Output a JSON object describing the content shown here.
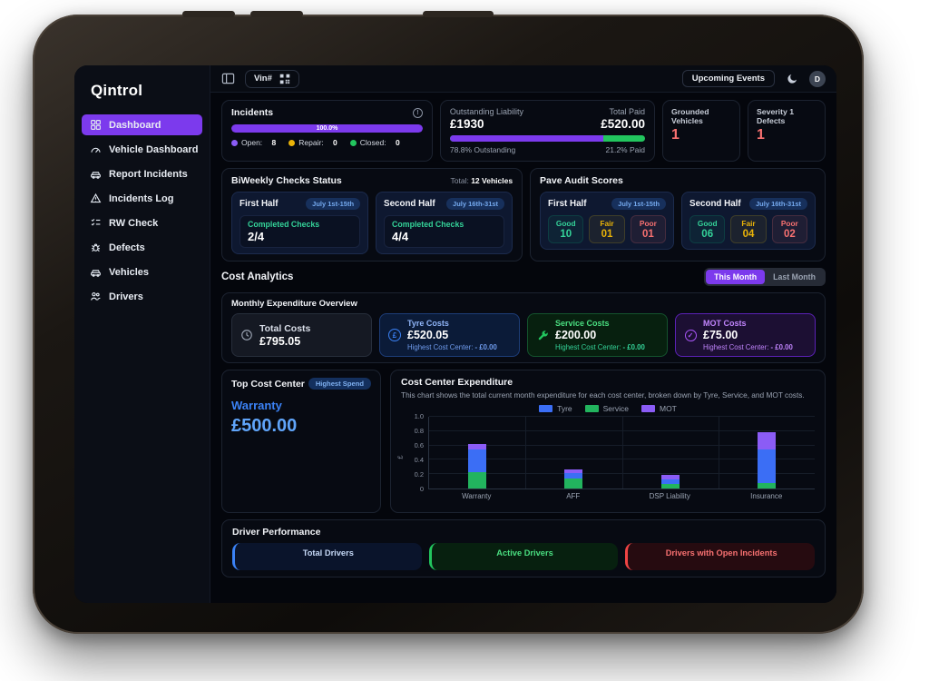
{
  "sidebar": {
    "logo": "Qintrol",
    "items": [
      {
        "label": "Dashboard",
        "icon": "grid-icon",
        "active": true
      },
      {
        "label": "Vehicle Dashboard",
        "icon": "gauge-icon"
      },
      {
        "label": "Report Incidents",
        "icon": "car-icon"
      },
      {
        "label": "Incidents Log",
        "icon": "warning-triangle-icon"
      },
      {
        "label": "RW Check",
        "icon": "checklist-icon"
      },
      {
        "label": "Defects",
        "icon": "bug-icon"
      },
      {
        "label": "Vehicles",
        "icon": "car-icon"
      },
      {
        "label": "Drivers",
        "icon": "people-icon"
      }
    ]
  },
  "topbar": {
    "vin_label": "Vin#",
    "upcoming_events": "Upcoming Events",
    "avatar_initial": "D"
  },
  "incidents": {
    "title": "Incidents",
    "progress_label": "100.0%",
    "progress_pct": 100,
    "legend": [
      {
        "label": "Open:",
        "value": "8",
        "color": "#8b5cf6"
      },
      {
        "label": "Repair:",
        "value": "0",
        "color": "#eab308"
      },
      {
        "label": "Closed:",
        "value": "0",
        "color": "#22c55e"
      }
    ]
  },
  "liability": {
    "left_label": "Outstanding Liability",
    "left_value": "£1930",
    "right_label": "Total Paid",
    "right_value": "£520.00",
    "outstanding_pct": 78.8,
    "paid_pct": 21.2,
    "left_sub": "78.8% Outstanding",
    "right_sub": "21.2% Paid",
    "outstanding_color": "#7c3aed",
    "paid_color": "#22c55e"
  },
  "stat_cards": [
    {
      "label": "Grounded Vehicles",
      "value": "1"
    },
    {
      "label": "Severity 1 Defects",
      "value": "1"
    }
  ],
  "biweekly": {
    "title": "BiWeekly Checks Status",
    "total_label": "Total: ",
    "total_value": "12 Vehicles",
    "halves": [
      {
        "title": "First Half",
        "badge": "July 1st-15th",
        "checks_label": "Completed Checks",
        "checks_value": "2/4"
      },
      {
        "title": "Second Half",
        "badge": "July 16th-31st",
        "checks_label": "Completed Checks",
        "checks_value": "4/4"
      }
    ]
  },
  "pave": {
    "title": "Pave Audit Scores",
    "halves": [
      {
        "title": "First Half",
        "badge": "July 1st-15th",
        "scores": [
          {
            "label": "Good",
            "value": "10"
          },
          {
            "label": "Fair",
            "value": "01"
          },
          {
            "label": "Poor",
            "value": "01"
          }
        ]
      },
      {
        "title": "Second Half",
        "badge": "July 16th-31st",
        "scores": [
          {
            "label": "Good",
            "value": "06"
          },
          {
            "label": "Fair",
            "value": "04"
          },
          {
            "label": "Poor",
            "value": "02"
          }
        ]
      }
    ]
  },
  "cost_analytics": {
    "title": "Cost Analytics",
    "toggle_active": "This Month",
    "toggle_inactive": "Last Month",
    "expenditure_title": "Monthly Expenditure Overview",
    "cards": [
      {
        "label": "Total Costs",
        "value": "£795.05",
        "icon": "clock-icon"
      },
      {
        "label": "Tyre Costs",
        "value": "£520.05",
        "sub_label": "Highest Cost Center:",
        "sub_value": " - £0.00",
        "icon": "pound-coin-icon"
      },
      {
        "label": "Service Costs",
        "value": "£200.00",
        "sub_label": "Highest Cost Center:",
        "sub_value": " - £0.00",
        "icon": "wrench-icon"
      },
      {
        "label": "MOT Costs",
        "value": "£75.00",
        "sub_label": "Highest Cost Center:",
        "sub_value": " - £0.00",
        "icon": "check-circle-icon"
      }
    ],
    "top_cost_center": {
      "title": "Top Cost Center",
      "badge": "Highest Spend",
      "name": "Warranty",
      "value": "£500.00"
    }
  },
  "chart_data": {
    "type": "bar",
    "stacked": true,
    "title": "Cost Center Expenditure",
    "subtitle": "This chart shows the total current month expenditure for each cost center, broken down by Tyre, Service, and MOT costs.",
    "categories": [
      "Warranty",
      "AFF",
      "DSP Liability",
      "Insurance"
    ],
    "series": [
      {
        "name": "Tyre",
        "color": "#3b6ef5",
        "values": [
          0.32,
          0.07,
          0.07,
          0.47
        ]
      },
      {
        "name": "Service",
        "color": "#22b45e",
        "values": [
          0.23,
          0.14,
          0.06,
          0.07
        ]
      },
      {
        "name": "MOT",
        "color": "#8b5cf6",
        "values": [
          0.07,
          0.06,
          0.06,
          0.25
        ]
      }
    ],
    "stack_order_bottom_to_top": [
      "Service",
      "Tyre",
      "MOT"
    ],
    "ylabel": "£",
    "ylim": [
      0,
      1.0
    ],
    "yticks": [
      0,
      0.2,
      0.4,
      0.6,
      0.8,
      1.0
    ],
    "legend_position": "top",
    "grid": true
  },
  "driver_performance": {
    "title": "Driver Performance",
    "cards": [
      {
        "label": "Total Drivers",
        "theme": "blue"
      },
      {
        "label": "Active Drivers",
        "theme": "green"
      },
      {
        "label": "Drivers with Open Incidents",
        "theme": "red"
      }
    ]
  }
}
